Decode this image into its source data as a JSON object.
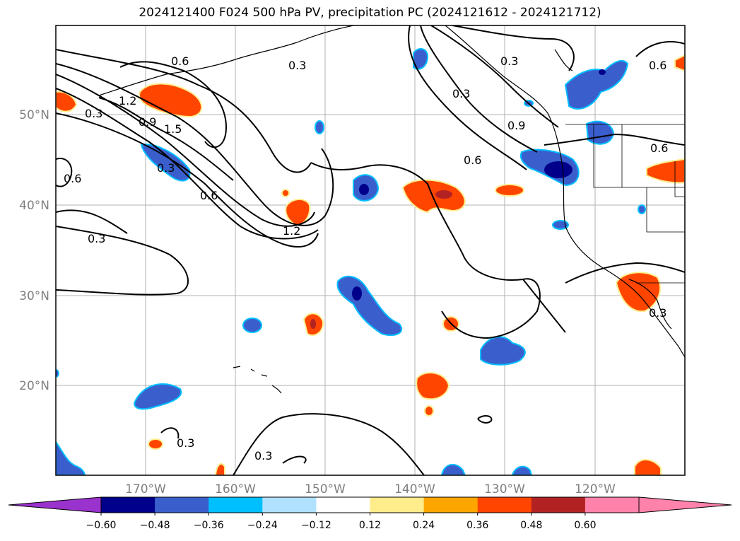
{
  "title": "2024121400 F024 500 hPa PV, precipitation PC (2024121612 - 2024121712)",
  "map": {
    "lon_labels": [
      "170°W",
      "160°W",
      "150°W",
      "140°W",
      "130°W",
      "120°W"
    ],
    "lat_labels": [
      "50°N",
      "40°N",
      "30°N",
      "20°N"
    ],
    "contour_labels": [
      "0.6",
      "0.3",
      "1.2",
      "0.9",
      "1.5",
      "0.3",
      "0.6",
      "0.6",
      "0.3",
      "1.2",
      "0.3",
      "0.6",
      "0.3",
      "0.3",
      "0.6",
      "0.9",
      "0.6",
      "0.3",
      "0.3",
      "0.3"
    ]
  },
  "colorbar": {
    "ticks": [
      "−0.60",
      "−0.48",
      "−0.36",
      "−0.24",
      "−0.12",
      "0.12",
      "0.24",
      "0.36",
      "0.48",
      "0.60"
    ],
    "colors": [
      "#9a32cd",
      "#00008b",
      "#3a5fcd",
      "#00bfff",
      "#b0e2ff",
      "#ffffff",
      "#ffec8b",
      "#ffa500",
      "#ff4500",
      "#b22222",
      "#ff82ab",
      "#ff82ab"
    ]
  }
}
